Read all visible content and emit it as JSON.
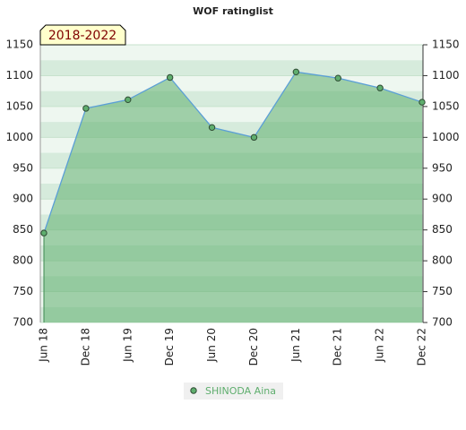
{
  "chart_data": {
    "type": "line",
    "title": "WOF ratinglist",
    "annotation": "2018-2022",
    "categories": [
      "Jun 18",
      "Dec 18",
      "Jun 19",
      "Dec 19",
      "Jun 20",
      "Dec 20",
      "Jun 21",
      "Dec 21",
      "Jun 22",
      "Dec 22"
    ],
    "series": [
      {
        "name": "SHINODA Aina",
        "color": "#5fae6e",
        "values": [
          845,
          1047,
          1061,
          1097,
          1016,
          1000,
          1106,
          1096,
          1080,
          1057
        ]
      }
    ],
    "ylim": [
      700,
      1150
    ],
    "yticks": [
      700,
      750,
      800,
      850,
      900,
      950,
      1000,
      1050,
      1100,
      1150
    ],
    "y2lim": [
      700,
      1150
    ],
    "y2ticks": [
      700,
      750,
      800,
      850,
      900,
      950,
      1000,
      1050,
      1100,
      1150
    ],
    "grid": true
  }
}
